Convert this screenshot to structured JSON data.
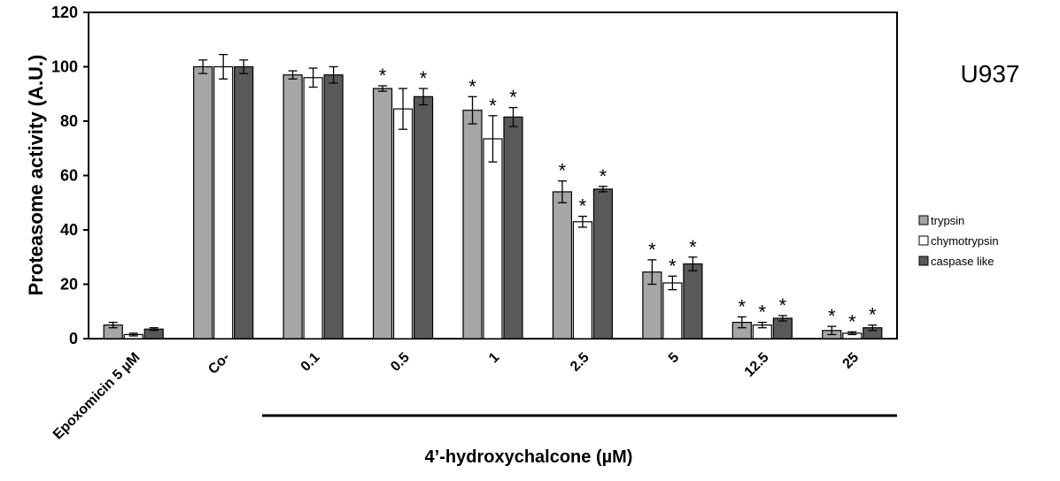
{
  "panel_label": "U937",
  "group_label": "4’-hydroxychalcone (µM)",
  "chart_data": {
    "type": "bar",
    "ylabel": "Proteasome activity (A.U.)",
    "xlabel": "",
    "ylim": [
      0,
      120
    ],
    "yticks": [
      "0",
      "20",
      "40",
      "60",
      "80",
      "100",
      "120"
    ],
    "categories": [
      "Epoxomicin 5 µM",
      "Co-",
      "0.1",
      "0.5",
      "1",
      "2.5",
      "5",
      "12.5",
      "25"
    ],
    "legend_position": "right",
    "series": [
      {
        "name": "trypsin",
        "color": "#a6a6a6",
        "values": [
          5,
          100,
          97,
          92,
          84,
          54,
          24.5,
          6,
          3
        ],
        "errors": [
          1,
          2.5,
          1.5,
          1,
          5,
          4,
          4.5,
          2,
          1.5
        ],
        "significant": [
          false,
          false,
          false,
          true,
          true,
          true,
          true,
          true,
          true
        ]
      },
      {
        "name": "chymotrypsin",
        "color": "#ffffff",
        "values": [
          1.5,
          100,
          96,
          84.5,
          73.5,
          43,
          20.5,
          5,
          2
        ],
        "errors": [
          0.5,
          4.5,
          3.5,
          7.5,
          8.5,
          2,
          2.5,
          1,
          0.5
        ],
        "significant": [
          false,
          false,
          false,
          false,
          true,
          true,
          true,
          true,
          true
        ]
      },
      {
        "name": "caspase like",
        "color": "#595959",
        "values": [
          3.5,
          100,
          97,
          89,
          81.5,
          55,
          27.5,
          7.5,
          4
        ],
        "errors": [
          0.5,
          2.5,
          3,
          3,
          3.5,
          1,
          2.5,
          1,
          1
        ],
        "significant": [
          false,
          false,
          false,
          true,
          true,
          true,
          true,
          true,
          true
        ]
      }
    ],
    "significance_marker": "*"
  }
}
